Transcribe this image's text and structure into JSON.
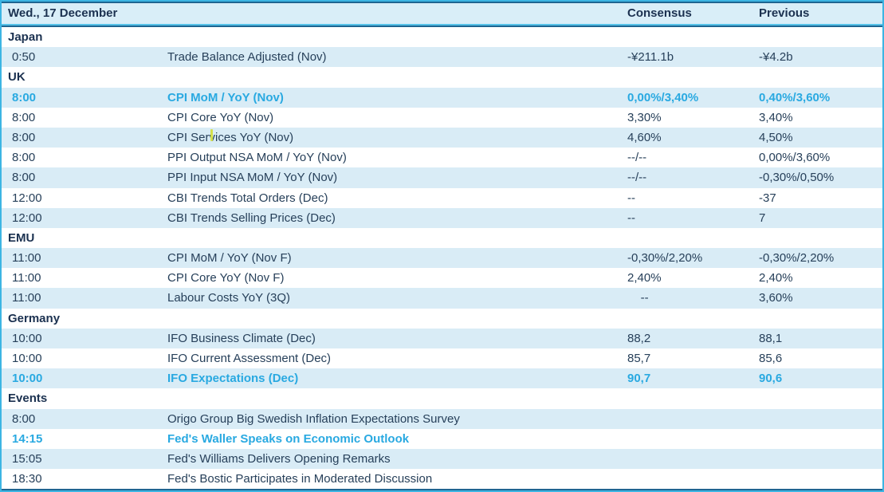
{
  "table": {
    "header": {
      "date_label": "Wed., 17 December",
      "consensus_label": "Consensus",
      "previous_label": "Previous"
    },
    "rows": [
      {
        "type": "section",
        "label": "Japan"
      },
      {
        "type": "event",
        "time": "0:50",
        "name": "Trade Balance Adjusted (Nov)",
        "consensus": "-¥211.1b",
        "previous": "-¥4.2b",
        "highlight": false
      },
      {
        "type": "section",
        "label": "UK"
      },
      {
        "type": "event",
        "time": "8:00",
        "name": "CPI MoM / YoY (Nov)",
        "consensus": "0,00%/3,40%",
        "previous": "0,40%/3,60%",
        "highlight": true
      },
      {
        "type": "event",
        "time": "8:00",
        "name": "CPI Core YoY (Nov)",
        "consensus": "3,30%",
        "previous": "3,40%",
        "highlight": false
      },
      {
        "type": "event",
        "time": "8:00",
        "name": "CPI Services YoY (Nov)",
        "consensus": "4,60%",
        "previous": "4,50%",
        "highlight": false
      },
      {
        "type": "event",
        "time": "8:00",
        "name": "PPI Output NSA MoM / YoY (Nov)",
        "consensus": "--/--",
        "previous": "0,00%/3,60%",
        "highlight": false
      },
      {
        "type": "event",
        "time": "8:00",
        "name": "PPI Input NSA MoM / YoY (Nov)",
        "consensus": "--/--",
        "previous": "-0,30%/0,50%",
        "highlight": false
      },
      {
        "type": "event",
        "time": "12:00",
        "name": "CBI Trends Total Orders (Dec)",
        "consensus": "--",
        "previous": "-37",
        "highlight": false
      },
      {
        "type": "event",
        "time": "12:00",
        "name": "CBI Trends Selling Prices (Dec)",
        "consensus": "--",
        "previous": "7",
        "highlight": false
      },
      {
        "type": "section",
        "label": "EMU"
      },
      {
        "type": "event",
        "time": "11:00",
        "name": "CPI MoM / YoY (Nov F)",
        "consensus": "-0,30%/2,20%",
        "previous": "-0,30%/2,20%",
        "highlight": false
      },
      {
        "type": "event",
        "time": "11:00",
        "name": "CPI Core YoY (Nov F)",
        "consensus": "2,40%",
        "previous": "2,40%",
        "highlight": false
      },
      {
        "type": "event",
        "time": "11:00",
        "name": "Labour Costs YoY (3Q)",
        "consensus": "    --",
        "previous": "3,60%",
        "highlight": false
      },
      {
        "type": "section",
        "label": "Germany"
      },
      {
        "type": "event",
        "time": "10:00",
        "name": "IFO Business Climate (Dec)",
        "consensus": "88,2",
        "previous": "88,1",
        "highlight": false
      },
      {
        "type": "event",
        "time": "10:00",
        "name": "IFO Current Assessment (Dec)",
        "consensus": "85,7",
        "previous": "85,6",
        "highlight": false
      },
      {
        "type": "event",
        "time": "10:00",
        "name": "IFO Expectations (Dec)",
        "consensus": "90,7",
        "previous": "90,6",
        "highlight": true
      },
      {
        "type": "section",
        "label": "Events"
      },
      {
        "type": "event",
        "time": "8:00",
        "name": "Origo Group Big Swedish Inflation Expectations Survey",
        "consensus": "",
        "previous": "",
        "highlight": false
      },
      {
        "type": "event",
        "time": "14:15",
        "name": "Fed's Waller Speaks on Economic Outlook",
        "consensus": "",
        "previous": "",
        "highlight": true
      },
      {
        "type": "event",
        "time": "15:05",
        "name": "Fed's Williams Delivers Opening Remarks",
        "consensus": "",
        "previous": "",
        "highlight": false
      },
      {
        "type": "event",
        "time": "18:30",
        "name": "Fed's Bostic Participates in Moderated Discussion",
        "consensus": "",
        "previous": "",
        "highlight": false
      }
    ]
  },
  "colors": {
    "border_outer": "#3cb5e3",
    "border_inner": "#1e6591",
    "header_bg": "#d9eef8",
    "row_alt": "#d9ecf6",
    "row_base": "#ffffff",
    "header_text": "#1b3150",
    "body_text": "#27405a",
    "accent_cyan": "#29a9e1",
    "cursor_mark": "#d4e04c"
  }
}
